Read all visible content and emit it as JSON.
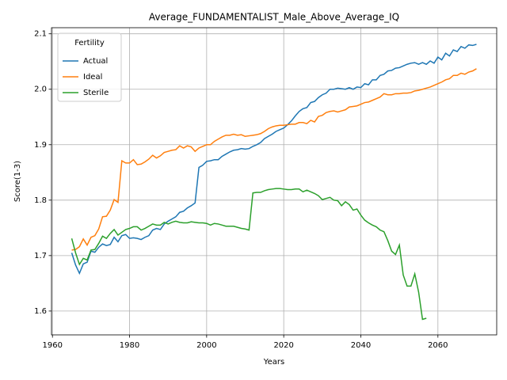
{
  "chart_data": {
    "type": "line",
    "title": "Average_FUNDAMENTALIST_Male_Above_Average_IQ",
    "xlabel": "Years",
    "ylabel": "Score(1-3)",
    "legend_title": "Fertility",
    "legend": "upper left",
    "grid": true,
    "x": [
      1965,
      1966,
      1967,
      1968,
      1969,
      1970,
      1971,
      1972,
      1973,
      1974,
      1975,
      1976,
      1977,
      1978,
      1979,
      1980,
      1981,
      1982,
      1983,
      1984,
      1985,
      1986,
      1987,
      1988,
      1989,
      1990,
      1991,
      1992,
      1993,
      1994,
      1995,
      1996,
      1997,
      1998,
      1999,
      2000,
      2001,
      2002,
      2003,
      2004,
      2005,
      2006,
      2007,
      2008,
      2009,
      2010,
      2011,
      2012,
      2013,
      2014,
      2015,
      2016,
      2017,
      2018,
      2019,
      2020,
      2021,
      2022,
      2023,
      2024,
      2025,
      2026,
      2027,
      2028,
      2029,
      2030,
      2031,
      2032,
      2033,
      2034,
      2035,
      2036,
      2037,
      2038,
      2039,
      2040,
      2041,
      2042,
      2043,
      2044,
      2045,
      2046,
      2047,
      2048,
      2049,
      2050,
      2051,
      2052,
      2053,
      2054,
      2055,
      2056,
      2057,
      2058,
      2059,
      2060,
      2061,
      2062,
      2063,
      2064,
      2065,
      2066,
      2067,
      2068,
      2069,
      2070
    ],
    "series": [
      {
        "name": "Actual",
        "color": "#1f77b4",
        "values": [
          1.705,
          1.683,
          1.668,
          1.685,
          1.688,
          1.708,
          1.706,
          1.715,
          1.721,
          1.718,
          1.72,
          1.733,
          1.725,
          1.736,
          1.738,
          1.731,
          1.732,
          1.731,
          1.729,
          1.733,
          1.736,
          1.746,
          1.749,
          1.747,
          1.757,
          1.762,
          1.766,
          1.77,
          1.778,
          1.78,
          1.786,
          1.79,
          1.795,
          1.859,
          1.863,
          1.87,
          1.871,
          1.873,
          1.873,
          1.879,
          1.883,
          1.887,
          1.89,
          1.891,
          1.893,
          1.892,
          1.893,
          1.897,
          1.9,
          1.904,
          1.911,
          1.915,
          1.919,
          1.924,
          1.927,
          1.93,
          1.936,
          1.943,
          1.952,
          1.96,
          1.965,
          1.967,
          1.976,
          1.978,
          1.985,
          1.99,
          1.993,
          2.0,
          2.0,
          2.002,
          2.001,
          2.0,
          2.003,
          2.0,
          2.004,
          2.003,
          2.01,
          2.008,
          2.017,
          2.017,
          2.025,
          2.027,
          2.033,
          2.034,
          2.038,
          2.039,
          2.042,
          2.045,
          2.047,
          2.048,
          2.045,
          2.048,
          2.045,
          2.051,
          2.047,
          2.058,
          2.053,
          2.065,
          2.06,
          2.071,
          2.068,
          2.077,
          2.074,
          2.08,
          2.079,
          2.081
        ]
      },
      {
        "name": "Ideal",
        "color": "#ff7f0e",
        "values": [
          1.71,
          1.711,
          1.716,
          1.73,
          1.719,
          1.733,
          1.736,
          1.748,
          1.77,
          1.771,
          1.782,
          1.801,
          1.796,
          1.871,
          1.867,
          1.867,
          1.873,
          1.864,
          1.865,
          1.869,
          1.874,
          1.881,
          1.876,
          1.88,
          1.886,
          1.888,
          1.89,
          1.891,
          1.898,
          1.894,
          1.898,
          1.896,
          1.888,
          1.894,
          1.897,
          1.9,
          1.9,
          1.906,
          1.91,
          1.914,
          1.917,
          1.917,
          1.919,
          1.917,
          1.918,
          1.915,
          1.916,
          1.917,
          1.918,
          1.92,
          1.924,
          1.929,
          1.932,
          1.934,
          1.935,
          1.935,
          1.936,
          1.937,
          1.937,
          1.94,
          1.94,
          1.938,
          1.944,
          1.941,
          1.951,
          1.953,
          1.958,
          1.96,
          1.961,
          1.959,
          1.961,
          1.963,
          1.968,
          1.969,
          1.97,
          1.973,
          1.976,
          1.977,
          1.98,
          1.983,
          1.986,
          1.992,
          1.99,
          1.99,
          1.992,
          1.992,
          1.993,
          1.993,
          1.994,
          1.997,
          1.998,
          2.0,
          2.002,
          2.004,
          2.007,
          2.01,
          2.013,
          2.017,
          2.019,
          2.025,
          2.025,
          2.029,
          2.027,
          2.031,
          2.033,
          2.037
        ]
      },
      {
        "name": "Sterile",
        "color": "#2ca02c",
        "values": [
          1.731,
          1.705,
          1.684,
          1.695,
          1.692,
          1.71,
          1.711,
          1.722,
          1.735,
          1.731,
          1.74,
          1.747,
          1.737,
          1.742,
          1.747,
          1.749,
          1.752,
          1.752,
          1.746,
          1.749,
          1.753,
          1.757,
          1.755,
          1.755,
          1.76,
          1.757,
          1.76,
          1.762,
          1.76,
          1.759,
          1.759,
          1.761,
          1.76,
          1.759,
          1.759,
          1.758,
          1.755,
          1.758,
          1.757,
          1.755,
          1.753,
          1.753,
          1.753,
          1.751,
          1.749,
          1.748,
          1.746,
          1.813,
          1.814,
          1.814,
          1.817,
          1.819,
          1.82,
          1.821,
          1.821,
          1.82,
          1.819,
          1.819,
          1.82,
          1.82,
          1.815,
          1.818,
          1.815,
          1.812,
          1.808,
          1.801,
          1.803,
          1.805,
          1.8,
          1.799,
          1.79,
          1.797,
          1.792,
          1.782,
          1.784,
          1.773,
          1.764,
          1.759,
          1.755,
          1.752,
          1.746,
          1.743,
          1.727,
          1.708,
          1.702,
          1.719,
          1.665,
          1.645,
          1.645,
          1.667,
          1.634,
          1.585,
          1.587,
          null,
          null,
          null,
          null,
          null,
          null,
          null,
          null,
          null,
          null,
          null,
          null,
          null
        ]
      }
    ],
    "xlim": [
      1959.75,
      2075.25
    ],
    "xticks": [
      1960,
      1980,
      2000,
      2020,
      2040,
      2060
    ],
    "ylim": [
      1.557,
      2.111
    ],
    "yticks": [
      1.6,
      1.7,
      1.8,
      1.9,
      {
        "value": 2,
        "label": "2.0"
      },
      2.1
    ]
  }
}
